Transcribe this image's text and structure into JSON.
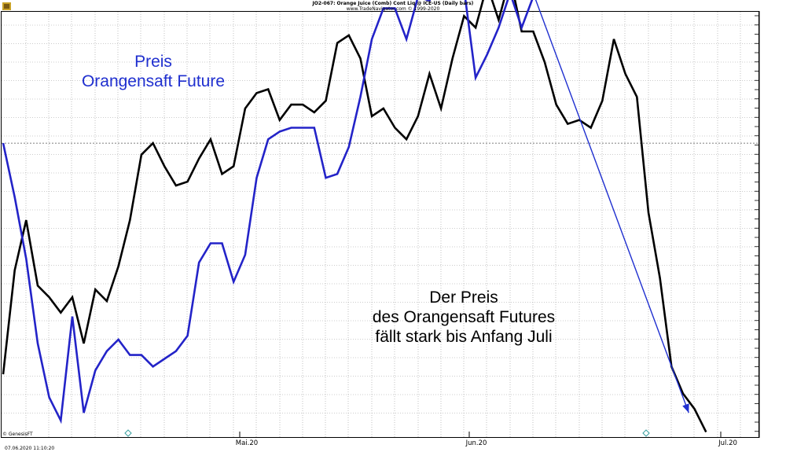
{
  "header": {
    "title": "JO2-067: Orange Juice (Comb) Cont Liq @ ICE-US  (Daily bars)",
    "credit": "www.TradeNavigator.com © 1999-2020"
  },
  "annotations": {
    "preis_line1": "Preis",
    "preis_line2": "Orangensaft Future",
    "fall_line1": "Der Preis",
    "fall_line2": "des Orangensaft Futures",
    "fall_line3": "fällt stark bis Anfang Juli"
  },
  "footer": {
    "watermark": "© GenesisFT",
    "timestamp": "07.06.2020 11:10:20"
  },
  "colors": {
    "price_line": "#000000",
    "overlay_line": "#2323c8",
    "arrow": "#1f2fcf",
    "grid": "#9a9a9a",
    "axis_text": "#000000",
    "diamond_marker": "#3aa0a0"
  },
  "chart_data": {
    "type": "line",
    "title": "JO2-067: Orange Juice (Comb) Cont Liq @ ICE-US  (Daily bars)",
    "xlabel": "",
    "ylabel": "",
    "x_tick_labels": [
      "Mai.20",
      "Jun.20",
      "Jul.20"
    ],
    "y_tick_labels": [],
    "grid": true,
    "legend": "none",
    "series": [
      {
        "color": "#000000",
        "values": [
          0.11,
          0.38,
          0.51,
          0.34,
          0.31,
          0.27,
          0.31,
          0.19,
          0.33,
          0.3,
          0.39,
          0.51,
          0.68,
          0.71,
          0.65,
          0.6,
          0.61,
          0.67,
          0.72,
          0.63,
          0.65,
          0.8,
          0.84,
          0.85,
          0.77,
          0.81,
          0.81,
          0.79,
          0.82,
          0.97,
          0.99,
          0.93,
          0.78,
          0.8,
          0.75,
          0.72,
          0.78,
          0.89,
          0.8,
          0.93,
          1.04,
          1.01,
          1.12,
          1.03,
          1.14,
          1.0,
          1.0,
          0.92,
          0.81,
          0.76,
          0.77,
          0.75,
          0.82,
          0.98,
          0.89,
          0.83,
          0.53,
          0.36,
          0.13,
          0.06,
          0.02,
          -0.04
        ]
      },
      {
        "color": "#2323c8",
        "values": [
          0.71,
          0.57,
          0.41,
          0.19,
          0.05,
          -0.01,
          0.26,
          0.01,
          0.12,
          0.17,
          0.2,
          0.16,
          0.16,
          0.13,
          0.15,
          0.17,
          0.21,
          0.4,
          0.45,
          0.45,
          0.35,
          0.42,
          0.62,
          0.72,
          0.74,
          0.75,
          0.75,
          0.75,
          0.62,
          0.63,
          0.7,
          0.83,
          0.98,
          1.06,
          1.06,
          0.98,
          1.09,
          1.08,
          1.17,
          1.18,
          1.11,
          0.88,
          0.94,
          1.01,
          1.1,
          1.01,
          1.09
        ]
      }
    ],
    "reference_line": {
      "y": 0.71,
      "style": "dotted"
    },
    "annotation_arrow": {
      "from": {
        "x": 45.5,
        "y": 1.14
      },
      "to": {
        "x": 59.5,
        "y": 0.01
      }
    }
  }
}
